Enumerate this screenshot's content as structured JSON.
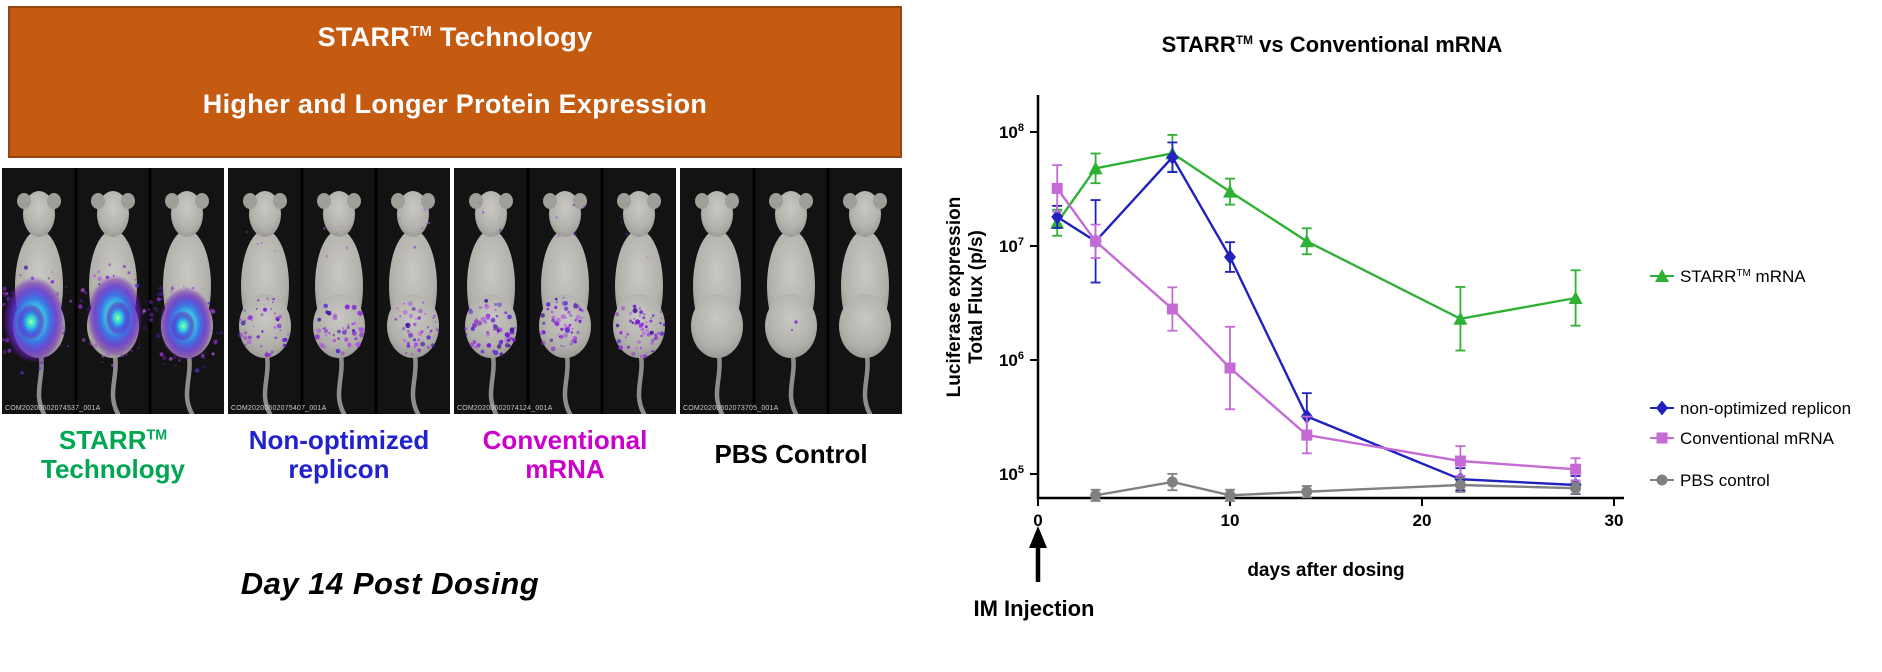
{
  "left": {
    "header": {
      "title_pre": "STARR",
      "title_tm": "TM",
      "title_post": " Technology",
      "subtitle": "Higher and Longer Protein Expression",
      "bg_color": "#c55a11"
    },
    "panels": [
      {
        "id": "starr",
        "label_line1": "STARR",
        "label_tm": "TM",
        "label_line2": "Technology",
        "color": "#00a651",
        "mice": 3,
        "signal": "strong",
        "watermark": "COM20200602074537_001A"
      },
      {
        "id": "non-optimized",
        "label_line1": "Non-optimized",
        "label_tm": "",
        "label_line2": "replicon",
        "color": "#2222cc",
        "mice": 3,
        "signal": "moderate",
        "watermark": "COM20200602075407_001A"
      },
      {
        "id": "conventional",
        "label_line1": "Conventional",
        "label_tm": "",
        "label_line2": "mRNA",
        "color": "#cc00cc",
        "mice": 3,
        "signal": "moderate",
        "watermark": "COM20200602074124_001A"
      },
      {
        "id": "pbs",
        "label_line1": "PBS Control",
        "label_tm": "",
        "label_line2": "",
        "color": "#000000",
        "mice": 3,
        "signal": "none",
        "watermark": "COM20200602073705_001A"
      }
    ],
    "caption": "Day 14 Post Dosing"
  },
  "chart_data": {
    "type": "line",
    "title_pre": "STARR",
    "title_tm": "TM",
    "title_post": " vs Conventional mRNA",
    "xlabel": "days after dosing",
    "ylabel_line1": "Luciferase expression",
    "ylabel_line2": "Total Flux (p/s)",
    "x_ticks": [
      0,
      10,
      20,
      30
    ],
    "xlim": [
      0,
      30
    ],
    "y_scale": "log",
    "y_tick_exponents": [
      5,
      6,
      7,
      8
    ],
    "annotation": "IM Injection",
    "legend_position": "right",
    "series": [
      {
        "id": "starr-mrna",
        "name_pre": "STARR",
        "name_tm": "TM",
        "name_post": " mRNA",
        "color": "#2eb135",
        "marker": "triangle",
        "x": [
          1,
          3,
          7,
          10,
          14,
          22,
          28
        ],
        "y": [
          16000000.0,
          48000000.0,
          65000000.0,
          30000000.0,
          11000000.0,
          2300000.0,
          3500000.0
        ],
        "err": [
          1.3,
          1.35,
          1.45,
          1.3,
          1.3,
          1.9,
          1.75
        ]
      },
      {
        "id": "non-optimized-replicon",
        "name_pre": "non-optimized replicon",
        "name_tm": "",
        "name_post": "",
        "color": "#2121bd",
        "marker": "diamond",
        "x": [
          1,
          3,
          7,
          10,
          14,
          22,
          28
        ],
        "y": [
          18000000.0,
          11000000.0,
          60000000.0,
          8000000.0,
          320000.0,
          90000.0,
          80000.0
        ],
        "err": [
          1.25,
          2.3,
          1.35,
          1.35,
          1.6,
          1.25,
          1.2
        ]
      },
      {
        "id": "conventional-mrna",
        "name_pre": "Conventional mRNA",
        "name_tm": "",
        "name_post": "",
        "color": "#c46bd6",
        "marker": "square",
        "x": [
          1,
          3,
          7,
          10,
          14,
          22,
          28
        ],
        "y": [
          32000000.0,
          11000000.0,
          2800000.0,
          850000.0,
          220000.0,
          130000.0,
          110000.0
        ],
        "err": [
          1.6,
          1.4,
          1.55,
          2.3,
          1.45,
          1.35,
          1.25
        ]
      },
      {
        "id": "pbs-control",
        "name_pre": "PBS control",
        "name_tm": "",
        "name_post": "",
        "color": "#808080",
        "marker": "circle",
        "x": [
          3,
          7,
          10,
          14,
          22,
          28
        ],
        "y": [
          65000.0,
          85000.0,
          65000.0,
          70000.0,
          80000.0,
          75000.0
        ],
        "err": [
          1.12,
          1.18,
          1.12,
          1.12,
          1.15,
          1.12
        ]
      }
    ]
  }
}
